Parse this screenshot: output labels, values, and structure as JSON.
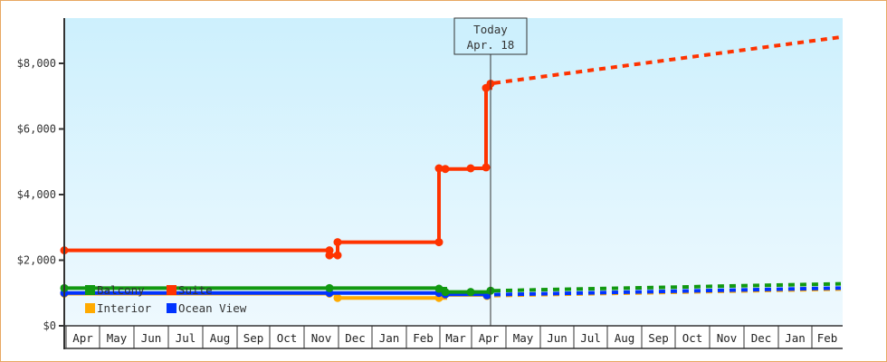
{
  "chart_data": {
    "type": "line",
    "title": "",
    "xlabel": "",
    "ylabel": "",
    "ylim": [
      0,
      9300
    ],
    "y_ticks": [
      {
        "value": 0,
        "label": "$0"
      },
      {
        "value": 2000,
        "label": "$2,000"
      },
      {
        "value": 4000,
        "label": "$4,000"
      },
      {
        "value": 6000,
        "label": "$6,000"
      },
      {
        "value": 8000,
        "label": "$8,000"
      }
    ],
    "x_months": [
      "Apr",
      "May",
      "Jun",
      "Jul",
      "Aug",
      "Sep",
      "Oct",
      "Nov",
      "Dec",
      "Jan",
      "Feb",
      "Mar",
      "Apr",
      "May",
      "Jun",
      "Jul",
      "Aug",
      "Sep",
      "Oct",
      "Nov",
      "Dec",
      "Jan",
      "Feb"
    ],
    "today_marker": {
      "line1": "Today",
      "line2": "Apr. 18"
    },
    "legend": [
      {
        "name": "Balcony",
        "color": "#119911"
      },
      {
        "name": "Suite",
        "color": "#ff3300"
      },
      {
        "name": "Interior",
        "color": "#ffaa00"
      },
      {
        "name": "Ocean View",
        "color": "#0033ff"
      }
    ],
    "grid": false,
    "background_gradient": [
      "#cdf0fd",
      "#eef9fe"
    ],
    "series": [
      {
        "name": "Suite",
        "color": "#ff3300",
        "historical": [
          {
            "date": "Apr (start)",
            "value": 2300
          },
          {
            "date": "Nov",
            "value": 2300
          },
          {
            "date": "Nov",
            "value": 2150
          },
          {
            "date": "Nov/Dec",
            "value": 2150
          },
          {
            "date": "Nov/Dec",
            "value": 2550
          },
          {
            "date": "Mar (early)",
            "value": 2550
          },
          {
            "date": "Mar (early)",
            "value": 4800
          },
          {
            "date": "Mar",
            "value": 4780
          },
          {
            "date": "Mar (late)",
            "value": 4800
          },
          {
            "date": "Apr (early)",
            "value": 4830
          },
          {
            "date": "Apr (early)",
            "value": 7250
          },
          {
            "date": "Apr 18",
            "value": 7380
          }
        ],
        "forecast": [
          {
            "date": "Apr 18",
            "value": 7400
          },
          {
            "date": "Feb (end)",
            "value": 8800
          }
        ]
      },
      {
        "name": "Balcony",
        "color": "#119911",
        "historical": [
          {
            "date": "Apr (start)",
            "value": 1150
          },
          {
            "date": "Nov",
            "value": 1150
          },
          {
            "date": "Mar (early)",
            "value": 1130
          },
          {
            "date": "Mar",
            "value": 1030
          },
          {
            "date": "Mar (late)",
            "value": 1030
          },
          {
            "date": "Apr 18",
            "value": 1070
          }
        ],
        "forecast": [
          {
            "date": "Apr 18",
            "value": 1070
          },
          {
            "date": "Feb (end)",
            "value": 1280
          }
        ]
      },
      {
        "name": "Ocean View",
        "color": "#0033ff",
        "historical": [
          {
            "date": "Apr (start)",
            "value": 1000
          },
          {
            "date": "Nov",
            "value": 1000
          },
          {
            "date": "Mar (early)",
            "value": 1000
          },
          {
            "date": "Mar",
            "value": 960
          },
          {
            "date": "Apr (early)",
            "value": 960
          },
          {
            "date": "Apr 18",
            "value": 930
          }
        ],
        "forecast": [
          {
            "date": "Apr 18",
            "value": 950
          },
          {
            "date": "Feb (end)",
            "value": 1150
          }
        ]
      },
      {
        "name": "Interior",
        "color": "#ffaa00",
        "historical": [
          {
            "date": "Apr (start)",
            "value": 980
          },
          {
            "date": "Nov",
            "value": 980
          },
          {
            "date": "Nov/Dec",
            "value": 850
          },
          {
            "date": "Mar (early)",
            "value": 850
          },
          {
            "date": "Mar",
            "value": 940
          },
          {
            "date": "Apr 18",
            "value": 910
          }
        ],
        "forecast": [
          {
            "date": "Apr 18",
            "value": 920
          },
          {
            "date": "Feb (end)",
            "value": 1120
          }
        ]
      }
    ]
  }
}
